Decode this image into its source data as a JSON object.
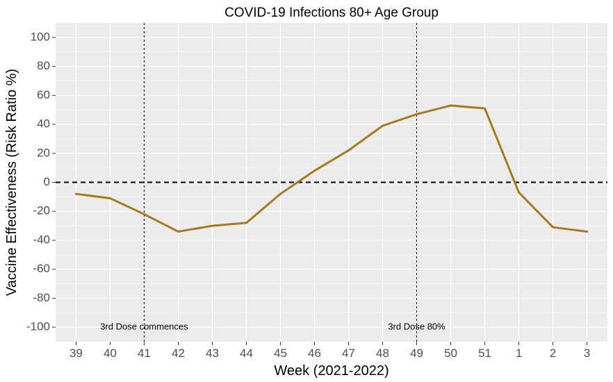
{
  "chart_data": {
    "type": "line",
    "title": "COVID-19 Infections 80+ Age Group",
    "xlabel": "Week (2021-2022)",
    "ylabel": "Vaccine Effectiveness (Risk Ratio %)",
    "categories": [
      "39",
      "40",
      "41",
      "42",
      "43",
      "44",
      "45",
      "46",
      "47",
      "48",
      "49",
      "50",
      "51",
      "1",
      "2",
      "3"
    ],
    "series": [
      {
        "values": [
          -8,
          -11,
          -22,
          -34,
          -30,
          -28,
          -8,
          8,
          22,
          39,
          47,
          53,
          51,
          -7,
          -31,
          -34
        ]
      }
    ],
    "ylim": [
      -110,
      110
    ],
    "yticks": [
      -100,
      -80,
      -60,
      -40,
      -20,
      0,
      20,
      40,
      60,
      80,
      100
    ],
    "grid": true,
    "legend": "none",
    "reference_lines": {
      "horizontal": {
        "y": 0,
        "style": "dashed"
      },
      "vertical": [
        {
          "x": "41",
          "style": "dotted",
          "label": "3rd Dose commences"
        },
        {
          "x": "49",
          "style": "dotted",
          "label": "3rd Dose 80%"
        }
      ]
    },
    "annotation_y": -100,
    "colors": {
      "line": "#A47A1E",
      "panel": "#EBEBEB",
      "grid": "#FFFFFF",
      "reference": "#000000"
    }
  }
}
